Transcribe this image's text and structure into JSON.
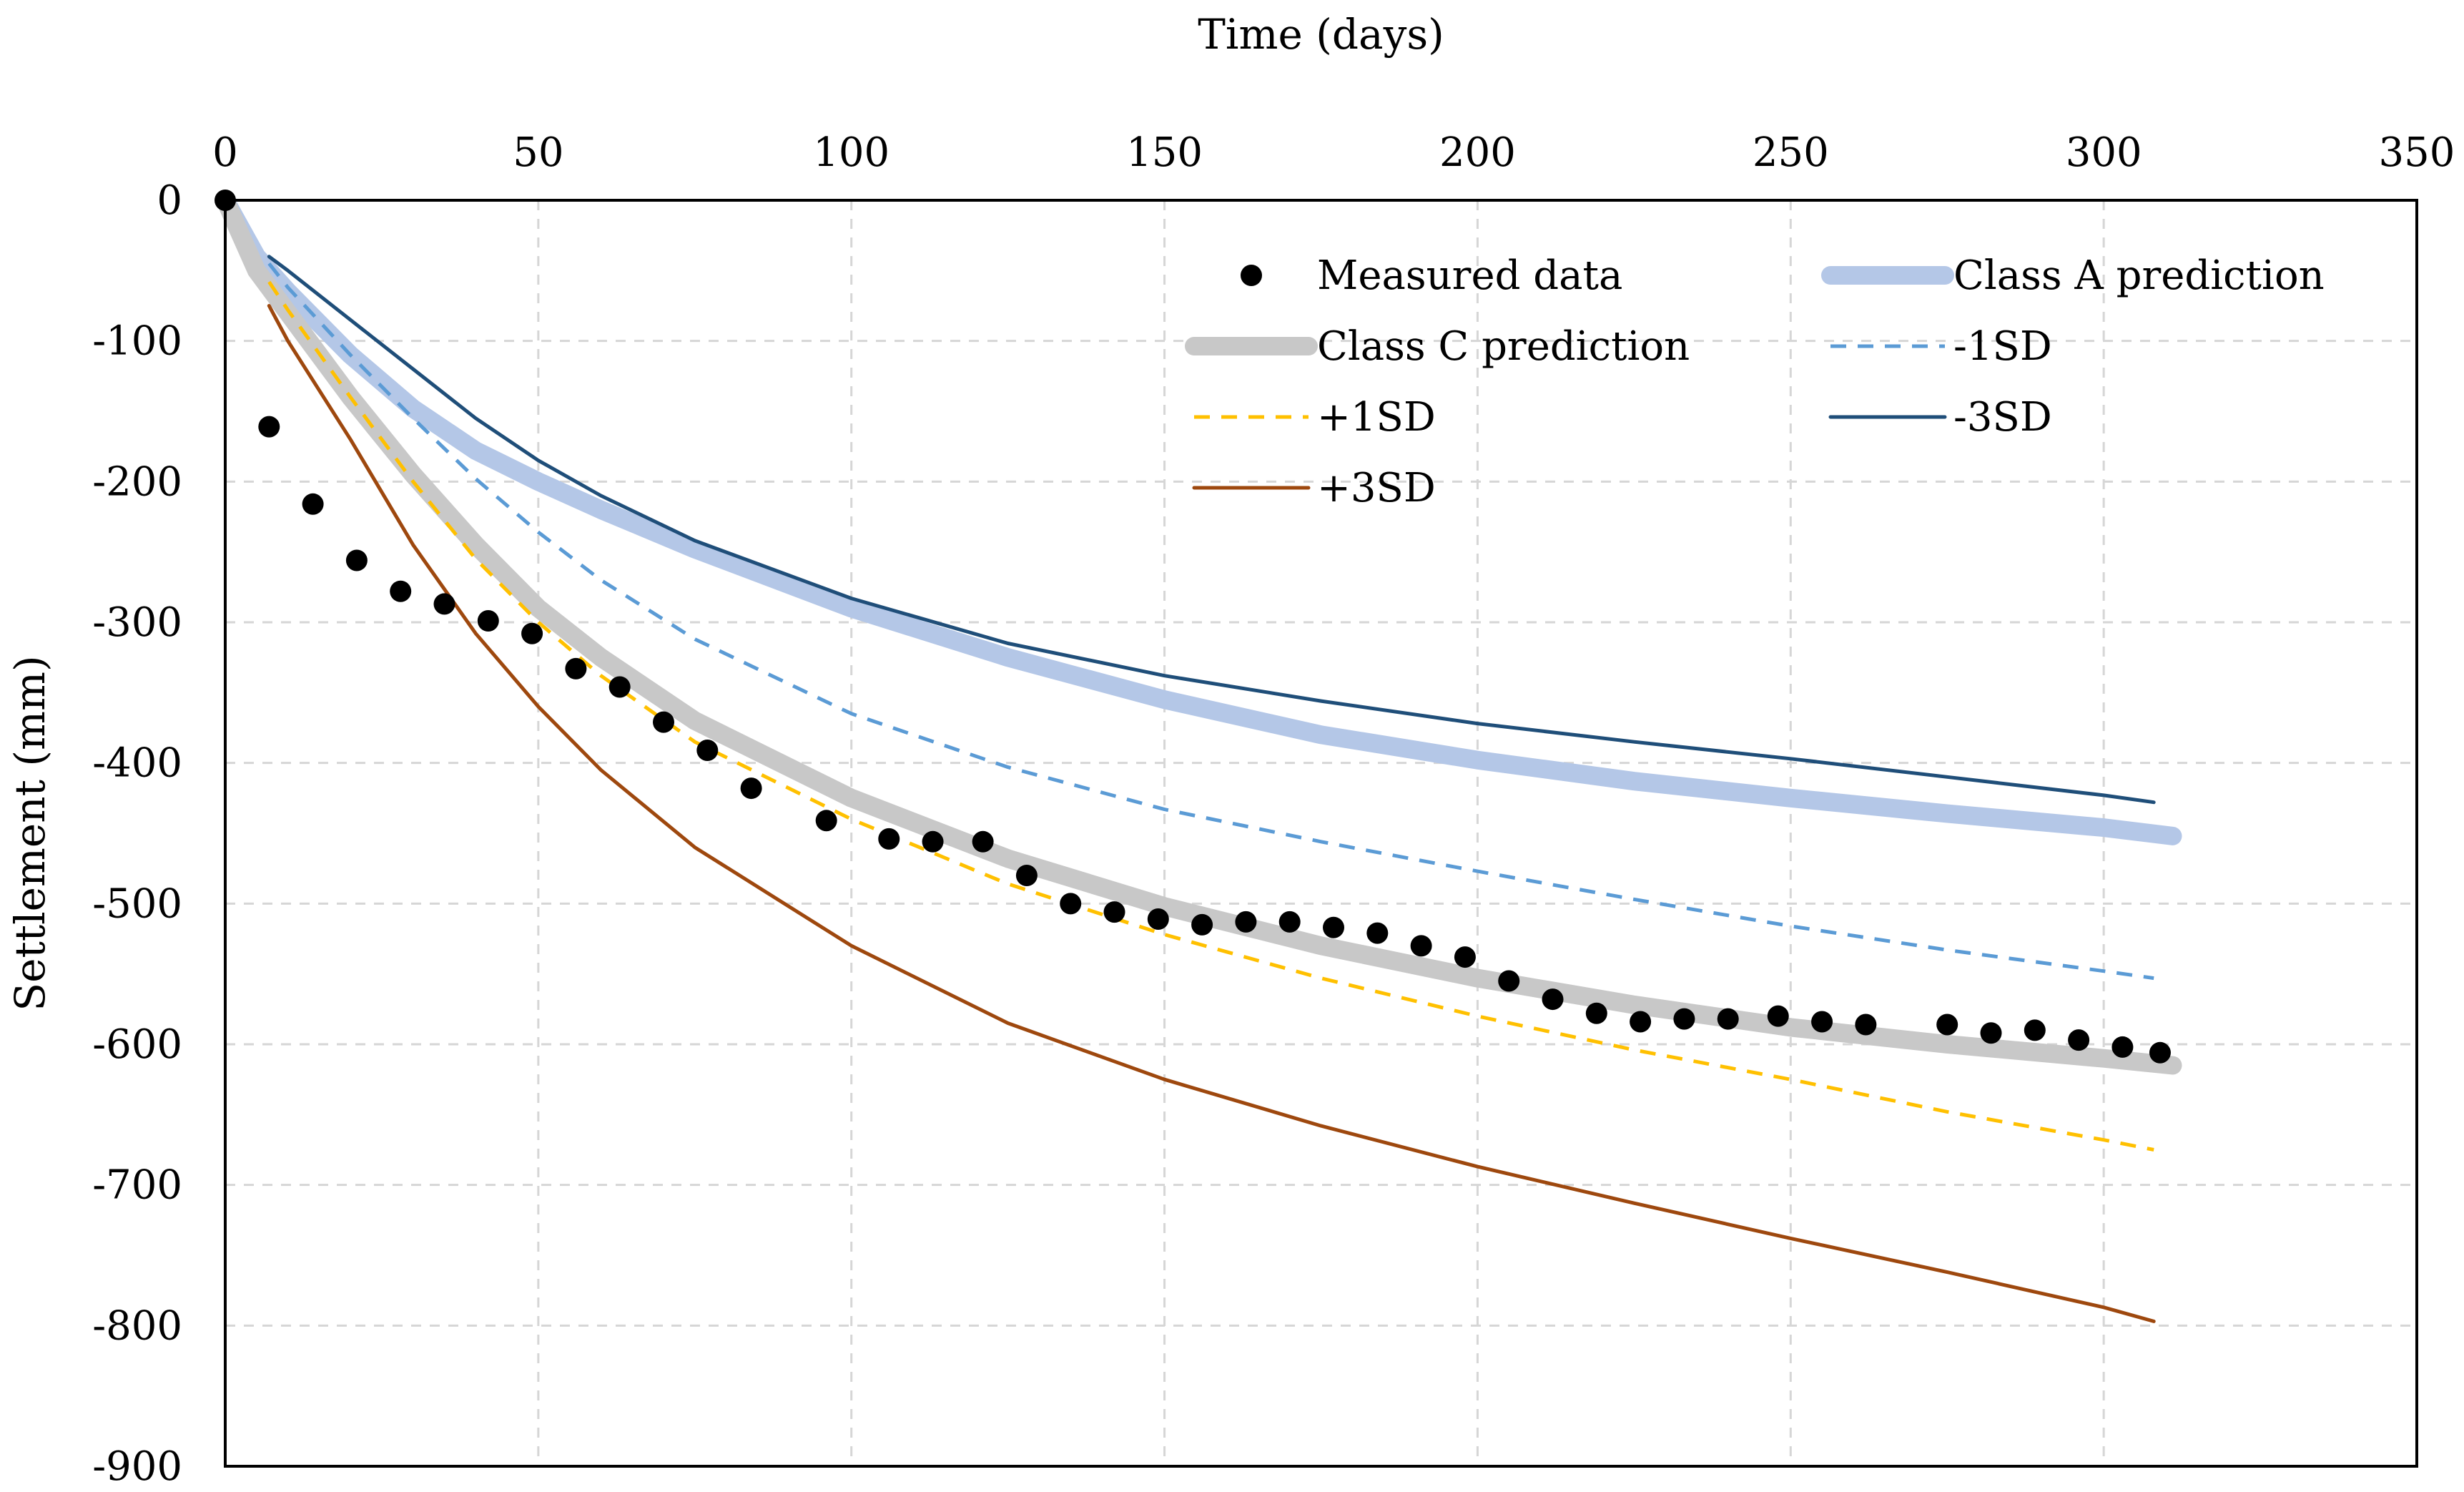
{
  "chart_data": {
    "type": "line",
    "title": "",
    "xlabel": "Time (days)",
    "ylabel": "Settlement (mm)",
    "xlim": [
      0,
      350
    ],
    "ylim": [
      -900,
      0
    ],
    "x_ticks": [
      0,
      50,
      100,
      150,
      200,
      250,
      300,
      350
    ],
    "y_ticks": [
      0,
      -100,
      -200,
      -300,
      -400,
      -500,
      -600,
      -700,
      -800,
      -900
    ],
    "x_tick_labels": [
      "0",
      "50",
      "100",
      "150",
      "200",
      "250",
      "300",
      "350"
    ],
    "y_tick_labels": [
      "0",
      "-100",
      "-200",
      "-300",
      "-400",
      "-500",
      "-600",
      "-700",
      "-800",
      "-900"
    ],
    "x_axis_position": "top",
    "grid": true,
    "legend_position": "top-right",
    "legend": [
      {
        "label": "Measured data",
        "series": "measured"
      },
      {
        "label": "Class A prediction",
        "series": "classA"
      },
      {
        "label": "Class C prediction",
        "series": "classC"
      },
      {
        "label": "-1SD",
        "series": "minus1sd"
      },
      {
        "label": "+1SD",
        "series": "plus1sd"
      },
      {
        "label": "-3SD",
        "series": "minus3sd"
      },
      {
        "label": "+3SD",
        "series": "plus3sd"
      }
    ],
    "series": [
      {
        "name": "Measured data",
        "key": "measured",
        "style": "markers",
        "color": "#000000",
        "x": [
          0,
          7,
          14,
          21,
          28,
          35,
          42,
          49,
          56,
          63,
          70,
          77,
          84,
          96,
          106,
          113,
          121,
          128,
          135,
          142,
          149,
          156,
          163,
          170,
          177,
          184,
          191,
          198,
          205,
          212,
          219,
          226,
          233,
          240,
          248,
          255,
          262,
          275,
          282,
          289,
          296,
          303,
          309
        ],
        "values": [
          0,
          -161,
          -216,
          -256,
          -278,
          -287,
          -299,
          -308,
          -333,
          -346,
          -371,
          -391,
          -418,
          -441,
          -454,
          -456,
          -456,
          -480,
          -500,
          -506,
          -511,
          -515,
          -513,
          -513,
          -517,
          -521,
          -530,
          -538,
          -555,
          -568,
          -578,
          -584,
          -582,
          -582,
          -580,
          -584,
          -586,
          -586,
          -592,
          -590,
          -597,
          -602,
          -606
        ]
      },
      {
        "name": "Class A prediction",
        "key": "classA",
        "style": "thick",
        "color": "#b4c7e7",
        "x": [
          0,
          5,
          10,
          20,
          30,
          40,
          50,
          60,
          75,
          100,
          125,
          150,
          175,
          200,
          225,
          250,
          275,
          300,
          311
        ],
        "values": [
          0,
          -40,
          -65,
          -110,
          -148,
          -178,
          -200,
          -220,
          -248,
          -290,
          -325,
          -355,
          -380,
          -398,
          -413,
          -425,
          -436,
          -446,
          -452
        ]
      },
      {
        "name": "Class C prediction",
        "key": "classC",
        "style": "thick",
        "color": "#c8c8c8",
        "x": [
          0,
          5,
          10,
          20,
          30,
          40,
          50,
          60,
          75,
          100,
          125,
          150,
          175,
          200,
          225,
          250,
          275,
          300,
          311
        ],
        "values": [
          0,
          -50,
          -80,
          -140,
          -195,
          -245,
          -290,
          -325,
          -370,
          -425,
          -468,
          -502,
          -530,
          -553,
          -572,
          -588,
          -600,
          -610,
          -615
        ]
      },
      {
        "name": "-1SD",
        "key": "minus1sd",
        "style": "dashed",
        "color": "#5b9bd5",
        "x": [
          7,
          10,
          20,
          30,
          40,
          50,
          60,
          75,
          100,
          125,
          150,
          175,
          200,
          225,
          250,
          275,
          300,
          308
        ],
        "values": [
          -45,
          -62,
          -110,
          -155,
          -198,
          -236,
          -270,
          -312,
          -365,
          -403,
          -433,
          -456,
          -477,
          -497,
          -516,
          -533,
          -548,
          -553
        ]
      },
      {
        "name": "+1SD",
        "key": "plus1sd",
        "style": "dashed",
        "color": "#ffc000",
        "x": [
          7,
          10,
          20,
          30,
          40,
          50,
          60,
          75,
          100,
          125,
          150,
          175,
          200,
          225,
          250,
          275,
          300,
          308
        ],
        "values": [
          -58,
          -78,
          -140,
          -200,
          -255,
          -300,
          -338,
          -385,
          -440,
          -486,
          -522,
          -553,
          -580,
          -604,
          -625,
          -648,
          -668,
          -675
        ]
      },
      {
        "name": "-3SD",
        "key": "minus3sd",
        "style": "solid",
        "color": "#1f4e79",
        "x": [
          7,
          10,
          20,
          30,
          40,
          50,
          60,
          75,
          100,
          125,
          150,
          175,
          200,
          225,
          250,
          275,
          300,
          308
        ],
        "values": [
          -40,
          -50,
          -85,
          -120,
          -155,
          -185,
          -210,
          -242,
          -283,
          -315,
          -338,
          -356,
          -372,
          -385,
          -397,
          -410,
          -423,
          -428
        ]
      },
      {
        "name": "+3SD",
        "key": "plus3sd",
        "style": "solid",
        "color": "#9e480e",
        "x": [
          7,
          10,
          20,
          30,
          40,
          50,
          60,
          75,
          100,
          125,
          150,
          175,
          200,
          225,
          250,
          275,
          300,
          308
        ],
        "values": [
          -75,
          -100,
          -170,
          -245,
          -308,
          -360,
          -405,
          -460,
          -530,
          -585,
          -625,
          -658,
          -687,
          -713,
          -738,
          -762,
          -787,
          -797
        ]
      }
    ]
  }
}
